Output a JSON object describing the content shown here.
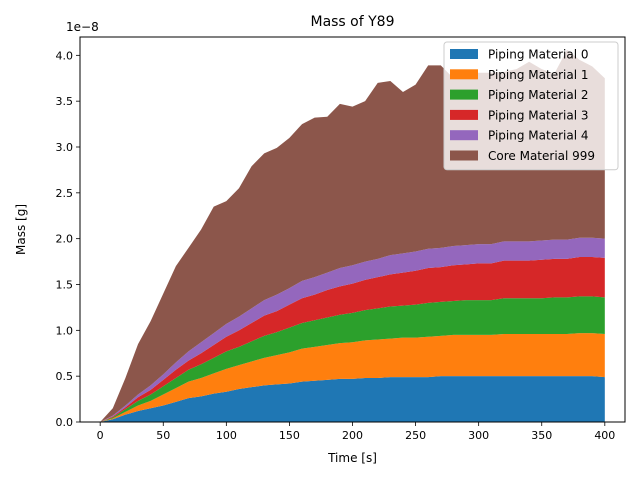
{
  "chart_data": {
    "type": "area",
    "stacked": true,
    "title": "Mass of Y89",
    "xlabel": "Time [s]",
    "ylabel": "Mass [g]",
    "y_scale_label": "1e−8",
    "xlim": [
      -16,
      416
    ],
    "ylim": [
      0,
      4.2
    ],
    "xticks": [
      0,
      50,
      100,
      150,
      200,
      250,
      300,
      350,
      400
    ],
    "yticks": [
      0.0,
      0.5,
      1.0,
      1.5,
      2.0,
      2.5,
      3.0,
      3.5,
      4.0
    ],
    "ytick_labels": [
      "0.0",
      "0.5",
      "1.0",
      "1.5",
      "2.0",
      "2.5",
      "3.0",
      "3.5",
      "4.0"
    ],
    "grid": false,
    "legend_position": "top-right",
    "x": [
      0,
      10,
      20,
      30,
      40,
      50,
      60,
      70,
      80,
      90,
      100,
      110,
      120,
      130,
      140,
      150,
      160,
      170,
      180,
      190,
      200,
      210,
      220,
      230,
      240,
      250,
      260,
      270,
      280,
      290,
      300,
      310,
      320,
      330,
      340,
      350,
      360,
      370,
      380,
      390,
      400
    ],
    "series": [
      {
        "name": "Piping Material 0",
        "color": "#1f77b4",
        "values": [
          0,
          0.03,
          0.08,
          0.12,
          0.15,
          0.18,
          0.22,
          0.26,
          0.28,
          0.31,
          0.33,
          0.36,
          0.38,
          0.4,
          0.41,
          0.42,
          0.44,
          0.45,
          0.46,
          0.47,
          0.47,
          0.48,
          0.48,
          0.49,
          0.49,
          0.49,
          0.49,
          0.5,
          0.5,
          0.5,
          0.5,
          0.5,
          0.5,
          0.5,
          0.5,
          0.5,
          0.5,
          0.5,
          0.5,
          0.5,
          0.49
        ]
      },
      {
        "name": "Piping Material 1",
        "color": "#ff7f0e",
        "values": [
          0,
          0.01,
          0.03,
          0.06,
          0.08,
          0.12,
          0.15,
          0.18,
          0.2,
          0.22,
          0.25,
          0.26,
          0.28,
          0.3,
          0.32,
          0.34,
          0.36,
          0.37,
          0.38,
          0.39,
          0.4,
          0.41,
          0.42,
          0.42,
          0.43,
          0.43,
          0.44,
          0.44,
          0.45,
          0.45,
          0.45,
          0.45,
          0.46,
          0.46,
          0.46,
          0.46,
          0.46,
          0.46,
          0.47,
          0.47,
          0.47
        ]
      },
      {
        "name": "Piping Material 2",
        "color": "#2ca02c",
        "values": [
          0,
          0.01,
          0.03,
          0.05,
          0.07,
          0.09,
          0.11,
          0.13,
          0.15,
          0.17,
          0.19,
          0.2,
          0.22,
          0.24,
          0.25,
          0.27,
          0.28,
          0.29,
          0.3,
          0.31,
          0.32,
          0.33,
          0.34,
          0.35,
          0.35,
          0.36,
          0.37,
          0.37,
          0.37,
          0.38,
          0.38,
          0.38,
          0.39,
          0.39,
          0.39,
          0.39,
          0.4,
          0.4,
          0.4,
          0.4,
          0.4
        ]
      },
      {
        "name": "Piping Material 3",
        "color": "#d62728",
        "values": [
          0,
          0.01,
          0.02,
          0.04,
          0.05,
          0.07,
          0.09,
          0.1,
          0.12,
          0.14,
          0.16,
          0.18,
          0.2,
          0.22,
          0.23,
          0.25,
          0.27,
          0.28,
          0.3,
          0.31,
          0.32,
          0.33,
          0.34,
          0.35,
          0.36,
          0.37,
          0.38,
          0.38,
          0.39,
          0.39,
          0.4,
          0.4,
          0.41,
          0.41,
          0.41,
          0.42,
          0.42,
          0.42,
          0.43,
          0.43,
          0.43
        ]
      },
      {
        "name": "Piping Material 4",
        "color": "#9467bd",
        "values": [
          0,
          0.01,
          0.02,
          0.03,
          0.05,
          0.06,
          0.08,
          0.1,
          0.12,
          0.13,
          0.14,
          0.15,
          0.16,
          0.17,
          0.18,
          0.18,
          0.19,
          0.19,
          0.19,
          0.2,
          0.2,
          0.2,
          0.2,
          0.21,
          0.21,
          0.21,
          0.21,
          0.21,
          0.21,
          0.21,
          0.21,
          0.21,
          0.21,
          0.21,
          0.21,
          0.21,
          0.21,
          0.21,
          0.21,
          0.21,
          0.21
        ]
      },
      {
        "name": "Core Material 999",
        "color": "#8c564b",
        "values": [
          0,
          0.08,
          0.3,
          0.55,
          0.7,
          0.88,
          1.05,
          1.13,
          1.23,
          1.38,
          1.34,
          1.4,
          1.55,
          1.6,
          1.6,
          1.64,
          1.71,
          1.74,
          1.7,
          1.79,
          1.73,
          1.75,
          1.92,
          1.9,
          1.76,
          1.82,
          2.0,
          1.99,
          1.83,
          1.86,
          1.87,
          1.87,
          1.85,
          1.88,
          1.96,
          1.87,
          1.81,
          2.07,
          1.94,
          1.87,
          1.75
        ]
      }
    ]
  }
}
